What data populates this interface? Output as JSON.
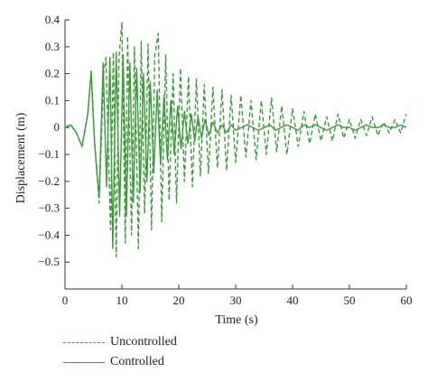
{
  "chart_data": {
    "type": "line",
    "xlabel": "Time (s)",
    "ylabel": "Displacement (m)",
    "xlim": [
      0,
      60
    ],
    "ylim": [
      -0.6,
      0.4
    ],
    "x_ticks": [
      "0",
      "10",
      "20",
      "30",
      "40",
      "50",
      "60"
    ],
    "y_ticks": [
      "0.4",
      "0.3",
      "0.2",
      "0.1",
      "0",
      "−0.1",
      "−0.2",
      "−0.3",
      "−0.4",
      "−0.5"
    ],
    "grid": false,
    "legend_position": "bottom-left",
    "colors": {
      "uncontrolled": "#3c9a3a",
      "controlled": "#3c9a3a"
    },
    "series": [
      {
        "name": "Uncontrolled",
        "style": "dashed",
        "x": [
          0,
          1,
          2,
          3,
          4,
          4.6,
          5.2,
          6,
          6.8,
          7.2,
          8,
          8.5,
          9,
          9.5,
          10,
          10.6,
          11,
          11.7,
          12.2,
          12.9,
          13.4,
          14,
          14.6,
          15.2,
          15.8,
          16.4,
          17,
          17.7,
          18.3,
          19,
          19.6,
          20.3,
          21,
          21.7,
          22.4,
          23.1,
          23.8,
          24.5,
          25.2,
          26,
          26.8,
          27.6,
          28.4,
          29.2,
          30,
          30.9,
          31.8,
          32.7,
          33.6,
          34.5,
          35.4,
          36.3,
          37.2,
          38.1,
          39,
          40,
          41,
          42,
          43,
          44,
          45,
          46,
          47,
          48,
          49,
          50,
          51,
          52,
          53,
          54,
          55,
          56,
          57,
          58,
          59,
          60
        ],
        "y": [
          0,
          0.01,
          -0.02,
          -0.07,
          0.05,
          0.2,
          -0.06,
          -0.28,
          0.2,
          0.26,
          -0.38,
          0.28,
          -0.48,
          0.26,
          0.39,
          -0.43,
          0.34,
          -0.4,
          0.3,
          -0.45,
          0.32,
          -0.32,
          0.31,
          -0.38,
          0.27,
          0.35,
          -0.35,
          0.27,
          -0.27,
          0.2,
          -0.28,
          0.22,
          -0.2,
          0.19,
          -0.22,
          0.18,
          -0.18,
          0.16,
          -0.17,
          0.15,
          -0.15,
          0.14,
          -0.16,
          0.12,
          -0.13,
          0.12,
          -0.11,
          0.1,
          -0.12,
          0.1,
          -0.1,
          0.11,
          -0.09,
          0.08,
          -0.1,
          0.07,
          -0.07,
          0.06,
          -0.06,
          0.05,
          -0.05,
          0.04,
          -0.05,
          0.05,
          -0.04,
          0.03,
          -0.04,
          0.03,
          -0.03,
          0.04,
          -0.03,
          0.02,
          -0.02,
          0.03,
          -0.02,
          0.05
        ]
      },
      {
        "name": "Controlled",
        "style": "solid",
        "x": [
          0,
          1,
          2,
          3,
          4,
          4.6,
          5.2,
          6,
          6.7,
          7.3,
          7.9,
          8.4,
          9,
          9.6,
          10.2,
          10.8,
          11.4,
          12,
          12.6,
          13.2,
          13.8,
          14.4,
          15,
          15.6,
          16.2,
          16.8,
          17.4,
          18,
          18.6,
          19.2,
          19.8,
          20.4,
          21,
          21.6,
          22.2,
          22.8,
          23.4,
          24,
          24.6,
          25.3,
          26,
          26.8,
          27.6,
          28.4,
          29.2,
          30,
          31,
          32,
          33,
          34,
          35,
          36,
          37,
          38,
          39,
          40,
          41,
          42,
          43,
          44,
          45,
          46,
          47,
          48,
          49,
          50,
          51,
          52,
          53,
          54,
          55,
          56,
          57,
          58,
          59,
          60
        ],
        "y": [
          0,
          0.01,
          -0.02,
          -0.07,
          0.05,
          0.21,
          -0.06,
          -0.26,
          0.24,
          -0.22,
          0.26,
          -0.45,
          0.28,
          -0.33,
          0.27,
          -0.33,
          0.24,
          -0.28,
          0.22,
          -0.24,
          0.2,
          -0.2,
          0.17,
          -0.17,
          0.14,
          -0.14,
          0.12,
          -0.12,
          0.1,
          -0.1,
          0.08,
          -0.08,
          0.06,
          -0.06,
          0.05,
          -0.05,
          0.04,
          -0.04,
          0.03,
          -0.03,
          0.02,
          -0.02,
          0.01,
          -0.02,
          0.01,
          -0.01,
          0.0,
          0.01,
          0.0,
          -0.01,
          0.0,
          0.01,
          -0.01,
          0.0,
          0.01,
          0.0,
          -0.01,
          0.01,
          0.0,
          0.01,
          0.0,
          -0.01,
          0.0,
          0.01,
          0.0,
          0.0,
          -0.01,
          0.0,
          0.01,
          0.0,
          0.0,
          0.01,
          0.0,
          0.0,
          0.01,
          0.0
        ]
      }
    ]
  }
}
